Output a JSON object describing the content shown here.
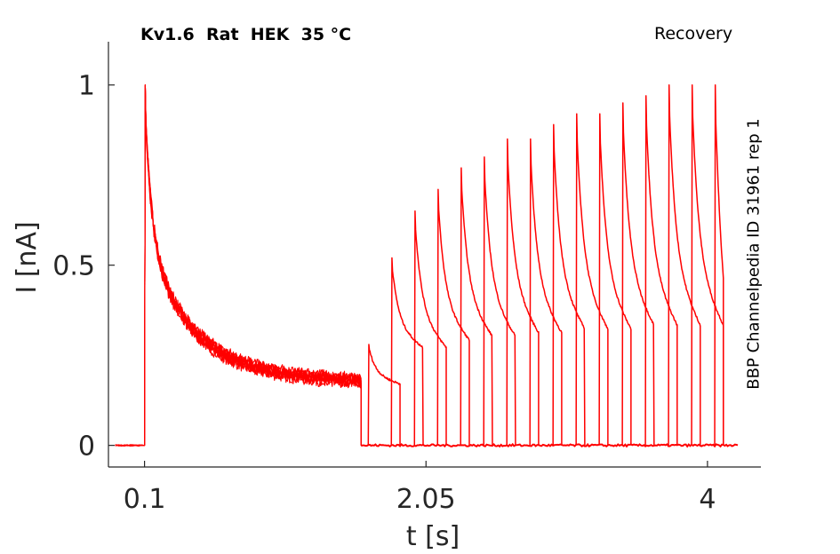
{
  "chart_data": {
    "type": "line",
    "title": "Kv1.6  Rat  HEK  35 °C",
    "protocol": "Recovery",
    "side_label": "BBP Channelpedia ID 31961 rep 1",
    "xlabel": "t [s]",
    "ylabel": "I [nA]",
    "xticks": [
      "0.1",
      "2.05",
      "4"
    ],
    "yticks": [
      "0",
      "0.5",
      "1"
    ],
    "xlim": [
      -0.15,
      4.37
    ],
    "ylim": [
      -0.06,
      1.12
    ],
    "grid": false,
    "legend": "none",
    "color": "#ff0000",
    "series": {
      "prepulse": {
        "t_start": -0.1,
        "t_pulse_on": 0.1,
        "t_pulse_off": 1.6,
        "peak": 1.0,
        "end_level": 0.16,
        "tau": 0.28,
        "residual_tau": 1.2
      },
      "test_pulses": [
        {
          "t_on": 1.65,
          "t_off": 1.87,
          "peak": 0.28,
          "end": 0.17
        },
        {
          "t_on": 1.81,
          "t_off": 2.03,
          "peak": 0.52,
          "end": 0.27
        },
        {
          "t_on": 1.97,
          "t_off": 2.19,
          "peak": 0.65,
          "end": 0.27
        },
        {
          "t_on": 2.13,
          "t_off": 2.35,
          "peak": 0.71,
          "end": 0.29
        },
        {
          "t_on": 2.29,
          "t_off": 2.51,
          "peak": 0.77,
          "end": 0.3
        },
        {
          "t_on": 2.45,
          "t_off": 2.67,
          "peak": 0.8,
          "end": 0.3
        },
        {
          "t_on": 2.61,
          "t_off": 2.83,
          "peak": 0.85,
          "end": 0.31
        },
        {
          "t_on": 2.77,
          "t_off": 2.99,
          "peak": 0.85,
          "end": 0.31
        },
        {
          "t_on": 2.93,
          "t_off": 3.15,
          "peak": 0.89,
          "end": 0.32
        },
        {
          "t_on": 3.09,
          "t_off": 3.31,
          "peak": 0.92,
          "end": 0.32
        },
        {
          "t_on": 3.25,
          "t_off": 3.47,
          "peak": 0.92,
          "end": 0.32
        },
        {
          "t_on": 3.41,
          "t_off": 3.63,
          "peak": 0.95,
          "end": 0.33
        },
        {
          "t_on": 3.57,
          "t_off": 3.79,
          "peak": 0.97,
          "end": 0.33
        },
        {
          "t_on": 3.73,
          "t_off": 3.95,
          "peak": 1.0,
          "end": 0.33
        },
        {
          "t_on": 3.89,
          "t_off": 4.11,
          "peak": 1.0,
          "end": 0.33
        },
        {
          "t_on": 4.05,
          "t_off": 4.11,
          "peak": 1.0,
          "end": 0.33
        }
      ],
      "baseline_end": 4.21
    }
  }
}
